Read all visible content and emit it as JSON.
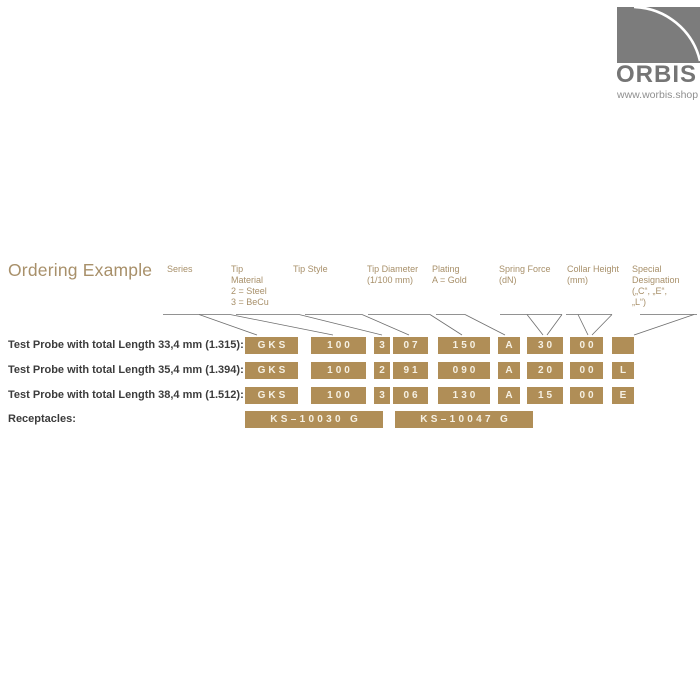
{
  "logo": {
    "brand": "ORBIS",
    "url": "www.worbis.shop",
    "square_color": "#7c7c7c",
    "text_color": "#757575"
  },
  "title": "Ordering Example",
  "columns": [
    {
      "id": "series",
      "lines": [
        "Series"
      ]
    },
    {
      "id": "tip-material",
      "lines": [
        "Tip",
        "Material",
        "2 = Steel",
        "3 = BeCu"
      ]
    },
    {
      "id": "tip-style",
      "lines": [
        "Tip Style"
      ]
    },
    {
      "id": "tip-diameter",
      "lines": [
        "Tip Diameter",
        "(1/100 mm)"
      ]
    },
    {
      "id": "plating",
      "lines": [
        "Plating",
        "A = Gold"
      ]
    },
    {
      "id": "spring-force",
      "lines": [
        "Spring Force",
        "(dN)"
      ]
    },
    {
      "id": "collar-height",
      "lines": [
        "Collar Height",
        "(mm)"
      ]
    },
    {
      "id": "special-designation",
      "lines": [
        "Special",
        "Designation",
        "(„C“, „E“,",
        "„L“)"
      ]
    }
  ],
  "rows": [
    {
      "label": "Test Probe with total Length 33,4 mm (1.315):",
      "cells": [
        "GKS",
        "100",
        "3",
        "07",
        "150",
        "A",
        "30",
        "00",
        ""
      ]
    },
    {
      "label": "Test Probe with total Length 35,4 mm (1.394):",
      "cells": [
        "GKS",
        "100",
        "2",
        "91",
        "090",
        "A",
        "20",
        "00",
        "L"
      ]
    },
    {
      "label": "Test Probe with total Length 38,4 mm (1.512):",
      "cells": [
        "GKS",
        "100",
        "3",
        "06",
        "130",
        "A",
        "15",
        "00",
        "E"
      ]
    }
  ],
  "receptacles": {
    "label": "Receptacles:",
    "cells": [
      "KS–10030 G",
      "KS–10047 G"
    ]
  },
  "colors": {
    "box_gold": "#b08e57",
    "box_text": "#f6f1e4",
    "header_text": "#a8906a",
    "label_text": "#3c3c3c",
    "line": "#6e6e6e"
  }
}
